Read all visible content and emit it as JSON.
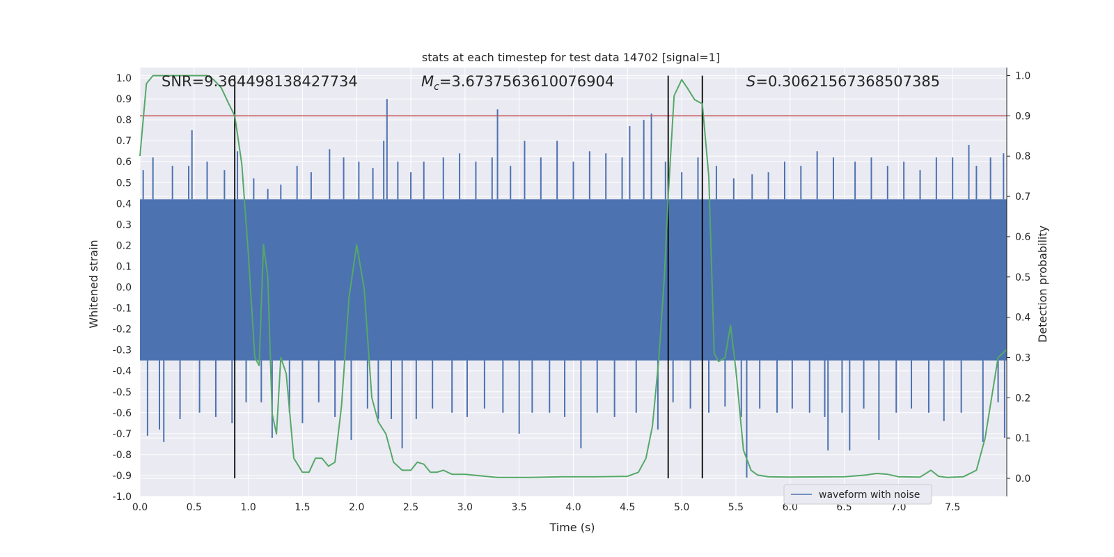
{
  "chart_data": {
    "type": "line",
    "title": "stats at each timestep for test data 14702 [signal=1]",
    "xlabel": "Time (s)",
    "ylabel": "Whitened strain",
    "y2label": "Detection probability",
    "xlim": [
      0.0,
      8.0
    ],
    "ylim": [
      -1.0,
      1.05
    ],
    "y2lim": [
      -0.045,
      1.02
    ],
    "xticks": [
      "0.0",
      "0.5",
      "1.0",
      "1.5",
      "2.0",
      "2.5",
      "3.0",
      "3.5",
      "4.0",
      "4.5",
      "5.0",
      "5.5",
      "6.0",
      "6.5",
      "7.0",
      "7.5"
    ],
    "yticks": [
      "-1.0",
      "-0.9",
      "-0.8",
      "-0.7",
      "-0.6",
      "-0.5",
      "-0.4",
      "-0.3",
      "-0.2",
      "-0.1",
      "0.0",
      "0.1",
      "0.2",
      "0.3",
      "0.4",
      "0.5",
      "0.6",
      "0.7",
      "0.8",
      "0.9",
      "1.0"
    ],
    "y2ticks": [
      "0.0",
      "0.1",
      "0.2",
      "0.3",
      "0.4",
      "0.5",
      "0.6",
      "0.7",
      "0.8",
      "0.9",
      "1.0"
    ],
    "annotations": {
      "snr": "SNR=9.364498138427734",
      "mc_symbol": "M",
      "mc_sub": "c",
      "mc_value": "=3.6737563610076904",
      "s_symbol": "S",
      "s_value": "=0.30621567368507385"
    },
    "legend": {
      "entries": [
        "waveform with noise"
      ],
      "position": "lower-right"
    },
    "threshold": 0.9,
    "vlines": [
      0.875,
      4.875,
      5.19
    ],
    "strain_band": [
      -0.35,
      0.42
    ],
    "strain_spikes": [
      {
        "x": 0.03,
        "y": 0.56
      },
      {
        "x": 0.07,
        "y": -0.71
      },
      {
        "x": 0.12,
        "y": 0.62
      },
      {
        "x": 0.18,
        "y": -0.68
      },
      {
        "x": 0.22,
        "y": -0.74
      },
      {
        "x": 0.3,
        "y": 0.58
      },
      {
        "x": 0.37,
        "y": -0.63
      },
      {
        "x": 0.45,
        "y": 0.58
      },
      {
        "x": 0.48,
        "y": 0.75
      },
      {
        "x": 0.55,
        "y": -0.6
      },
      {
        "x": 0.62,
        "y": 0.6
      },
      {
        "x": 0.7,
        "y": -0.62
      },
      {
        "x": 0.78,
        "y": 0.56
      },
      {
        "x": 0.85,
        "y": -0.65
      },
      {
        "x": 0.9,
        "y": 0.65
      },
      {
        "x": 0.98,
        "y": -0.55
      },
      {
        "x": 1.05,
        "y": 0.52
      },
      {
        "x": 1.12,
        "y": -0.55
      },
      {
        "x": 1.18,
        "y": 0.47
      },
      {
        "x": 1.22,
        "y": -0.72
      },
      {
        "x": 1.3,
        "y": 0.49
      },
      {
        "x": 1.38,
        "y": -0.6
      },
      {
        "x": 1.45,
        "y": 0.58
      },
      {
        "x": 1.5,
        "y": -0.65
      },
      {
        "x": 1.58,
        "y": 0.55
      },
      {
        "x": 1.65,
        "y": -0.55
      },
      {
        "x": 1.75,
        "y": 0.66
      },
      {
        "x": 1.8,
        "y": -0.62
      },
      {
        "x": 1.88,
        "y": 0.62
      },
      {
        "x": 1.95,
        "y": -0.73
      },
      {
        "x": 2.02,
        "y": 0.6
      },
      {
        "x": 2.1,
        "y": -0.58
      },
      {
        "x": 2.15,
        "y": 0.57
      },
      {
        "x": 2.2,
        "y": -0.63
      },
      {
        "x": 2.25,
        "y": 0.7
      },
      {
        "x": 2.28,
        "y": 0.9
      },
      {
        "x": 2.32,
        "y": -0.63
      },
      {
        "x": 2.38,
        "y": 0.6
      },
      {
        "x": 2.42,
        "y": -0.77
      },
      {
        "x": 2.5,
        "y": 0.55
      },
      {
        "x": 2.55,
        "y": -0.63
      },
      {
        "x": 2.62,
        "y": 0.6
      },
      {
        "x": 2.7,
        "y": -0.58
      },
      {
        "x": 2.8,
        "y": 0.62
      },
      {
        "x": 2.88,
        "y": -0.6
      },
      {
        "x": 2.95,
        "y": 0.64
      },
      {
        "x": 3.02,
        "y": -0.62
      },
      {
        "x": 3.1,
        "y": 0.6
      },
      {
        "x": 3.18,
        "y": -0.58
      },
      {
        "x": 3.25,
        "y": 0.62
      },
      {
        "x": 3.3,
        "y": 0.85
      },
      {
        "x": 3.35,
        "y": -0.6
      },
      {
        "x": 3.42,
        "y": 0.58
      },
      {
        "x": 3.5,
        "y": -0.7
      },
      {
        "x": 3.55,
        "y": 0.7
      },
      {
        "x": 3.62,
        "y": -0.6
      },
      {
        "x": 3.7,
        "y": 0.62
      },
      {
        "x": 3.78,
        "y": -0.6
      },
      {
        "x": 3.85,
        "y": 0.7
      },
      {
        "x": 3.92,
        "y": -0.62
      },
      {
        "x": 4.0,
        "y": 0.6
      },
      {
        "x": 4.07,
        "y": -0.77
      },
      {
        "x": 4.15,
        "y": 0.65
      },
      {
        "x": 4.22,
        "y": -0.6
      },
      {
        "x": 4.3,
        "y": 0.64
      },
      {
        "x": 4.38,
        "y": -0.62
      },
      {
        "x": 4.45,
        "y": 0.62
      },
      {
        "x": 4.52,
        "y": 0.77
      },
      {
        "x": 4.58,
        "y": -0.6
      },
      {
        "x": 4.65,
        "y": 0.8
      },
      {
        "x": 4.72,
        "y": 0.83
      },
      {
        "x": 4.78,
        "y": -0.68
      },
      {
        "x": 4.85,
        "y": 0.6
      },
      {
        "x": 4.92,
        "y": -0.55
      },
      {
        "x": 5.0,
        "y": 0.55
      },
      {
        "x": 5.08,
        "y": -0.58
      },
      {
        "x": 5.15,
        "y": 0.62
      },
      {
        "x": 5.25,
        "y": -0.6
      },
      {
        "x": 5.32,
        "y": 0.58
      },
      {
        "x": 5.4,
        "y": -0.57
      },
      {
        "x": 5.48,
        "y": 0.52
      },
      {
        "x": 5.55,
        "y": -0.62
      },
      {
        "x": 5.6,
        "y": -0.91
      },
      {
        "x": 5.65,
        "y": 0.54
      },
      {
        "x": 5.72,
        "y": -0.58
      },
      {
        "x": 5.8,
        "y": 0.55
      },
      {
        "x": 5.88,
        "y": -0.6
      },
      {
        "x": 5.95,
        "y": 0.6
      },
      {
        "x": 6.02,
        "y": -0.58
      },
      {
        "x": 6.1,
        "y": 0.58
      },
      {
        "x": 6.18,
        "y": -0.6
      },
      {
        "x": 6.25,
        "y": 0.65
      },
      {
        "x": 6.32,
        "y": -0.62
      },
      {
        "x": 6.35,
        "y": -0.78
      },
      {
        "x": 6.4,
        "y": 0.62
      },
      {
        "x": 6.48,
        "y": -0.6
      },
      {
        "x": 6.55,
        "y": -0.78
      },
      {
        "x": 6.6,
        "y": 0.6
      },
      {
        "x": 6.68,
        "y": -0.58
      },
      {
        "x": 6.75,
        "y": 0.62
      },
      {
        "x": 6.82,
        "y": -0.73
      },
      {
        "x": 6.9,
        "y": 0.58
      },
      {
        "x": 6.98,
        "y": -0.6
      },
      {
        "x": 7.05,
        "y": 0.6
      },
      {
        "x": 7.12,
        "y": -0.58
      },
      {
        "x": 7.2,
        "y": 0.56
      },
      {
        "x": 7.28,
        "y": -0.6
      },
      {
        "x": 7.35,
        "y": 0.62
      },
      {
        "x": 7.42,
        "y": -0.64
      },
      {
        "x": 7.5,
        "y": 0.62
      },
      {
        "x": 7.58,
        "y": -0.6
      },
      {
        "x": 7.65,
        "y": 0.68
      },
      {
        "x": 7.72,
        "y": 0.58
      },
      {
        "x": 7.78,
        "y": -0.74
      },
      {
        "x": 7.85,
        "y": 0.62
      },
      {
        "x": 7.92,
        "y": -0.55
      },
      {
        "x": 7.97,
        "y": 0.64
      },
      {
        "x": 7.98,
        "y": -0.72
      }
    ],
    "probability": {
      "x": [
        0.0,
        0.06,
        0.12,
        0.25,
        0.5,
        0.62,
        0.68,
        0.75,
        0.82,
        0.875,
        0.94,
        1.0,
        1.06,
        1.1,
        1.14,
        1.18,
        1.22,
        1.26,
        1.3,
        1.35,
        1.42,
        1.5,
        1.56,
        1.62,
        1.68,
        1.74,
        1.8,
        1.86,
        1.93,
        2.0,
        2.07,
        2.14,
        2.2,
        2.27,
        2.34,
        2.42,
        2.5,
        2.56,
        2.62,
        2.68,
        2.74,
        2.8,
        2.88,
        3.0,
        3.3,
        3.6,
        3.9,
        4.2,
        4.5,
        4.6,
        4.67,
        4.73,
        4.79,
        4.84,
        4.875,
        4.93,
        5.0,
        5.05,
        5.12,
        5.19,
        5.25,
        5.3,
        5.34,
        5.4,
        5.45,
        5.5,
        5.57,
        5.64,
        5.7,
        5.8,
        6.0,
        6.5,
        6.7,
        6.8,
        6.9,
        7.0,
        7.2,
        7.3,
        7.37,
        7.45,
        7.6,
        7.72,
        7.8,
        7.86,
        7.92,
        8.0
      ],
      "y": [
        0.8,
        0.98,
        1.0,
        1.0,
        1.0,
        1.0,
        0.99,
        0.97,
        0.93,
        0.9,
        0.78,
        0.56,
        0.3,
        0.28,
        0.58,
        0.5,
        0.16,
        0.11,
        0.3,
        0.26,
        0.05,
        0.015,
        0.015,
        0.05,
        0.05,
        0.03,
        0.04,
        0.18,
        0.45,
        0.58,
        0.47,
        0.2,
        0.14,
        0.11,
        0.04,
        0.02,
        0.02,
        0.04,
        0.035,
        0.015,
        0.015,
        0.02,
        0.01,
        0.01,
        0.002,
        0.002,
        0.004,
        0.004,
        0.005,
        0.015,
        0.05,
        0.13,
        0.3,
        0.5,
        0.7,
        0.95,
        0.99,
        0.97,
        0.94,
        0.93,
        0.75,
        0.31,
        0.29,
        0.3,
        0.38,
        0.27,
        0.07,
        0.02,
        0.008,
        0.004,
        0.003,
        0.004,
        0.008,
        0.012,
        0.01,
        0.004,
        0.003,
        0.02,
        0.005,
        0.002,
        0.004,
        0.02,
        0.1,
        0.2,
        0.3,
        0.32
      ]
    }
  }
}
